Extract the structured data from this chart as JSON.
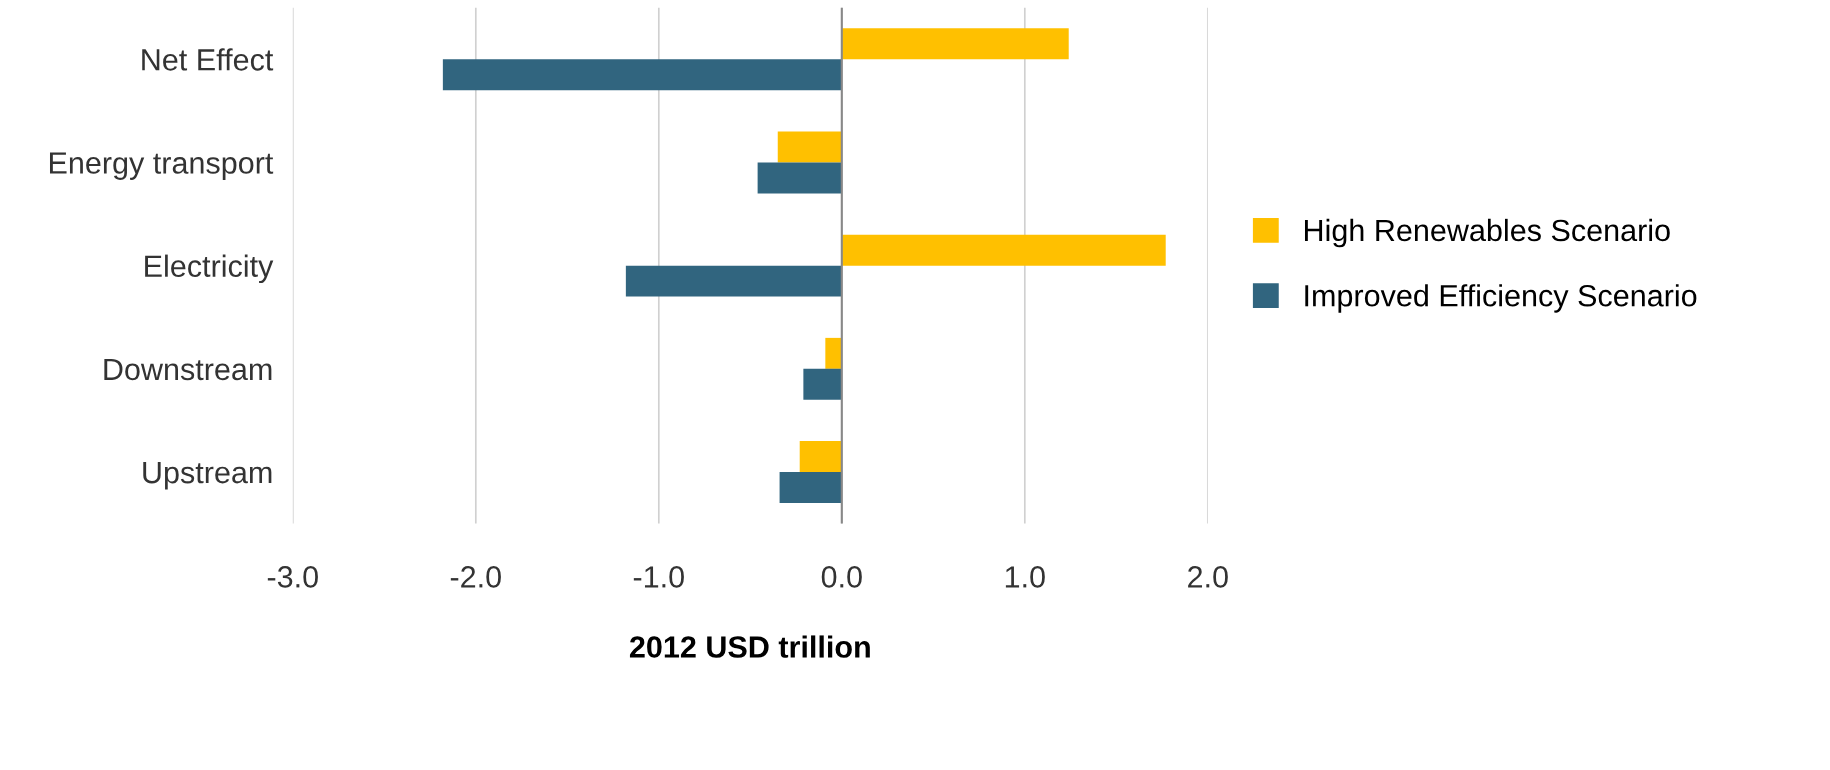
{
  "chart_data": {
    "type": "bar",
    "orientation": "horizontal",
    "xlabel": "2012 USD trillion",
    "categories": [
      "Net Effect",
      "Energy transport",
      "Electricity",
      "Downstream",
      "Upstream"
    ],
    "series": [
      {
        "name": "High Renewables Scenario",
        "color": "#ffc000",
        "values": [
          1.24,
          -0.35,
          1.77,
          -0.09,
          -0.23
        ]
      },
      {
        "name": "Improved Efficiency Scenario",
        "color": "#31657f",
        "values": [
          -2.18,
          -0.46,
          -1.18,
          -0.21,
          -0.34
        ]
      }
    ],
    "xlim": [
      -3,
      2
    ],
    "xticks": [
      {
        "value": -3,
        "label": "-3.0"
      },
      {
        "value": -2,
        "label": "-2.0"
      },
      {
        "value": -1,
        "label": "-1.0"
      },
      {
        "value": 0,
        "label": "0.0"
      },
      {
        "value": 1,
        "label": "1.0"
      },
      {
        "value": 2,
        "label": "2.0"
      }
    ],
    "grid": "x",
    "legend": "right"
  }
}
